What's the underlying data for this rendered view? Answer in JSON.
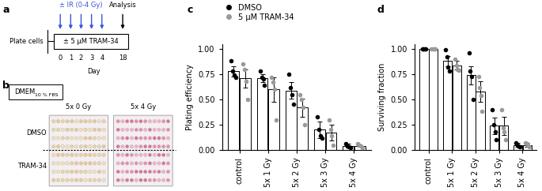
{
  "panel_labels": [
    "a",
    "b",
    "c",
    "d"
  ],
  "schedule": {
    "treatment": "± IR (0-4 Gy)",
    "analysis": "Analysis",
    "plating": "Plate cells",
    "drug": "± 5 µM TRAM-34",
    "irradiation_days": [
      0,
      1,
      2,
      3,
      4
    ],
    "analysis_day": 18,
    "day_label": "Day"
  },
  "plates": {
    "medium": "DMEM",
    "medium_subscript": "10 % FBS",
    "columns": [
      "5x 0 Gy",
      "5x 4 Gy"
    ],
    "rows": [
      "DMSO",
      "TRAM-34"
    ]
  },
  "chart_data": [
    {
      "type": "bar",
      "y_label": "Plating efficiency",
      "categories": [
        "control",
        "5x 1 Gy",
        "5x 2 Gy",
        "5x 3 Gy",
        "5x 4 Gy"
      ],
      "ylim": [
        0,
        1.05
      ],
      "yticks": [
        {
          "value": 0,
          "label": "0.00"
        },
        {
          "value": 0.25,
          "label": "0.25"
        },
        {
          "value": 0.5,
          "label": "0.50"
        },
        {
          "value": 0.75,
          "label": "0.75"
        },
        {
          "value": 1.0,
          "label": "1.00"
        }
      ],
      "legend": "upper left",
      "series": [
        {
          "name": "DMSO",
          "color": "#000000",
          "values": [
            0.78,
            0.71,
            0.59,
            0.2,
            0.04
          ],
          "errors": [
            0.05,
            0.04,
            0.08,
            0.08,
            0.02
          ],
          "points": [
            [
              0.88,
              0.78,
              0.74,
              0.72
            ],
            [
              0.78,
              0.72,
              0.7,
              0.64
            ],
            [
              0.75,
              0.62,
              0.55,
              0.45
            ],
            [
              0.33,
              0.2,
              0.14,
              0.12
            ],
            [
              0.06,
              0.04,
              0.03,
              0.02
            ]
          ]
        },
        {
          "name": "5 µM TRAM-34",
          "color": "#9a9a9a",
          "values": [
            0.71,
            0.6,
            0.42,
            0.17,
            0.04
          ],
          "errors": [
            0.09,
            0.12,
            0.09,
            0.08,
            0.01
          ],
          "points": [
            [
              0.85,
              0.8,
              0.68,
              0.5
            ],
            [
              0.72,
              0.67,
              0.6,
              0.3
            ],
            [
              0.55,
              0.5,
              0.42,
              0.25
            ],
            [
              0.3,
              0.2,
              0.14,
              0.05
            ],
            [
              0.06,
              0.05,
              0.04,
              0.02
            ]
          ]
        }
      ]
    },
    {
      "type": "bar",
      "y_label": "Surviving fraction",
      "categories": [
        "control",
        "5x 1 Gy",
        "5x 2 Gy",
        "5x 3 Gy",
        "5x 4 Gy"
      ],
      "ylim": [
        0,
        1.05
      ],
      "yticks": [
        {
          "value": 0,
          "label": "0.00"
        },
        {
          "value": 0.25,
          "label": "0.25"
        },
        {
          "value": 0.5,
          "label": "0.50"
        },
        {
          "value": 0.75,
          "label": "0.75"
        },
        {
          "value": 1.0,
          "label": "1.00"
        }
      ],
      "series": [
        {
          "color": "#000000",
          "values": [
            1.0,
            0.88,
            0.74,
            0.24,
            0.05
          ],
          "errors": [
            0,
            0.05,
            0.09,
            0.08,
            0.02
          ],
          "points": [
            [
              1.0,
              1.0,
              1.0,
              1.0
            ],
            [
              0.99,
              0.92,
              0.82,
              0.78
            ],
            [
              0.96,
              0.78,
              0.73,
              0.5
            ],
            [
              0.4,
              0.25,
              0.18,
              0.1
            ],
            [
              0.07,
              0.05,
              0.04,
              0.03
            ]
          ]
        },
        {
          "color": "#9a9a9a",
          "values": [
            1.0,
            0.84,
            0.58,
            0.24,
            0.05
          ],
          "errors": [
            0,
            0.04,
            0.1,
            0.09,
            0.02
          ],
          "points": [
            [
              1.0,
              1.0,
              1.0,
              1.0
            ],
            [
              0.9,
              0.84,
              0.8,
              0.79
            ],
            [
              0.73,
              0.62,
              0.54,
              0.38
            ],
            [
              0.4,
              0.22,
              0.18,
              0.1
            ],
            [
              0.07,
              0.06,
              0.05,
              0.03
            ]
          ]
        }
      ]
    }
  ]
}
